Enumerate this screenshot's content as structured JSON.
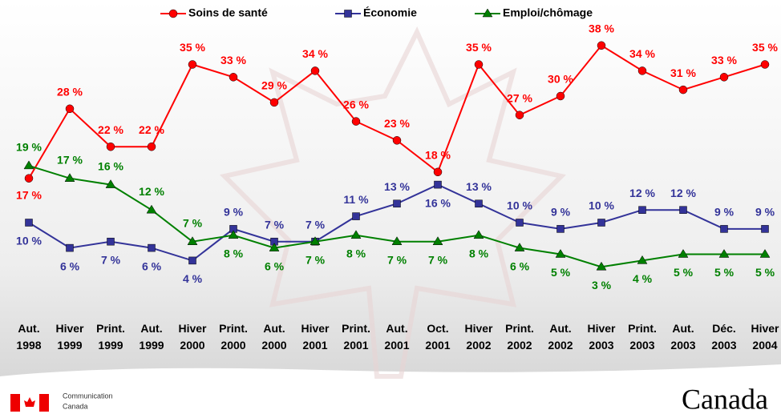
{
  "chart_data": {
    "type": "line",
    "categories": [
      "Aut. 1998",
      "Hiver 1999",
      "Print. 1999",
      "Aut. 1999",
      "Hiver 2000",
      "Print. 2000",
      "Aut. 2000",
      "Hiver 2001",
      "Print. 2001",
      "Aut. 2001",
      "Oct. 2001",
      "Hiver 2002",
      "Print. 2002",
      "Aut. 2002",
      "Hiver 2003",
      "Print. 2003",
      "Aut. 2003",
      "Déc. 2003",
      "Hiver 2004"
    ],
    "ylim": [
      0,
      45
    ],
    "legend": "top",
    "series": [
      {
        "name": "Soins de santé",
        "color": "#ff0000",
        "marker": "circle",
        "values": [
          17,
          28,
          22,
          22,
          35,
          33,
          29,
          34,
          26,
          23,
          18,
          35,
          27,
          30,
          38,
          34,
          31,
          33,
          35
        ],
        "value_labels": [
          "17 %",
          "28 %",
          "22 %",
          "22 %",
          "35 %",
          "33 %",
          "29 %",
          "34 %",
          "26 %",
          "23 %",
          "18 %",
          "35 %",
          "27 %",
          "30 %",
          "38 %",
          "34 %",
          "31 %",
          "33 %",
          "35 %"
        ]
      },
      {
        "name": "Économie",
        "color": "#333399",
        "marker": "square",
        "values": [
          10,
          6,
          7,
          6,
          4,
          9,
          7,
          7,
          11,
          13,
          16,
          13,
          10,
          9,
          10,
          12,
          12,
          9,
          9
        ],
        "value_labels": [
          "10 %",
          "6 %",
          "7 %",
          "6 %",
          "4 %",
          "9 %",
          "7 %",
          "7 %",
          "11 %",
          "13 %",
          "16 %",
          "13 %",
          "10 %",
          "9 %",
          "10 %",
          "12 %",
          "12 %",
          "9 %",
          "9 %"
        ]
      },
      {
        "name": "Emploi/chômage",
        "color": "#008000",
        "marker": "triangle",
        "values": [
          19,
          17,
          16,
          12,
          7,
          8,
          6,
          7,
          8,
          7,
          7,
          8,
          6,
          5,
          3,
          4,
          5,
          5,
          5
        ],
        "value_labels": [
          "19 %",
          "17 %",
          "16 %",
          "12 %",
          "7 %",
          "8 %",
          "6 %",
          "7 %",
          "8 %",
          "7 %",
          "7 %",
          "8 %",
          "6 %",
          "5 %",
          "3 %",
          "4 %",
          "5 %",
          "5 %",
          "5 %"
        ]
      }
    ]
  },
  "footer": {
    "department": [
      "Communication",
      "Canada"
    ],
    "wordmark": "Canada"
  }
}
